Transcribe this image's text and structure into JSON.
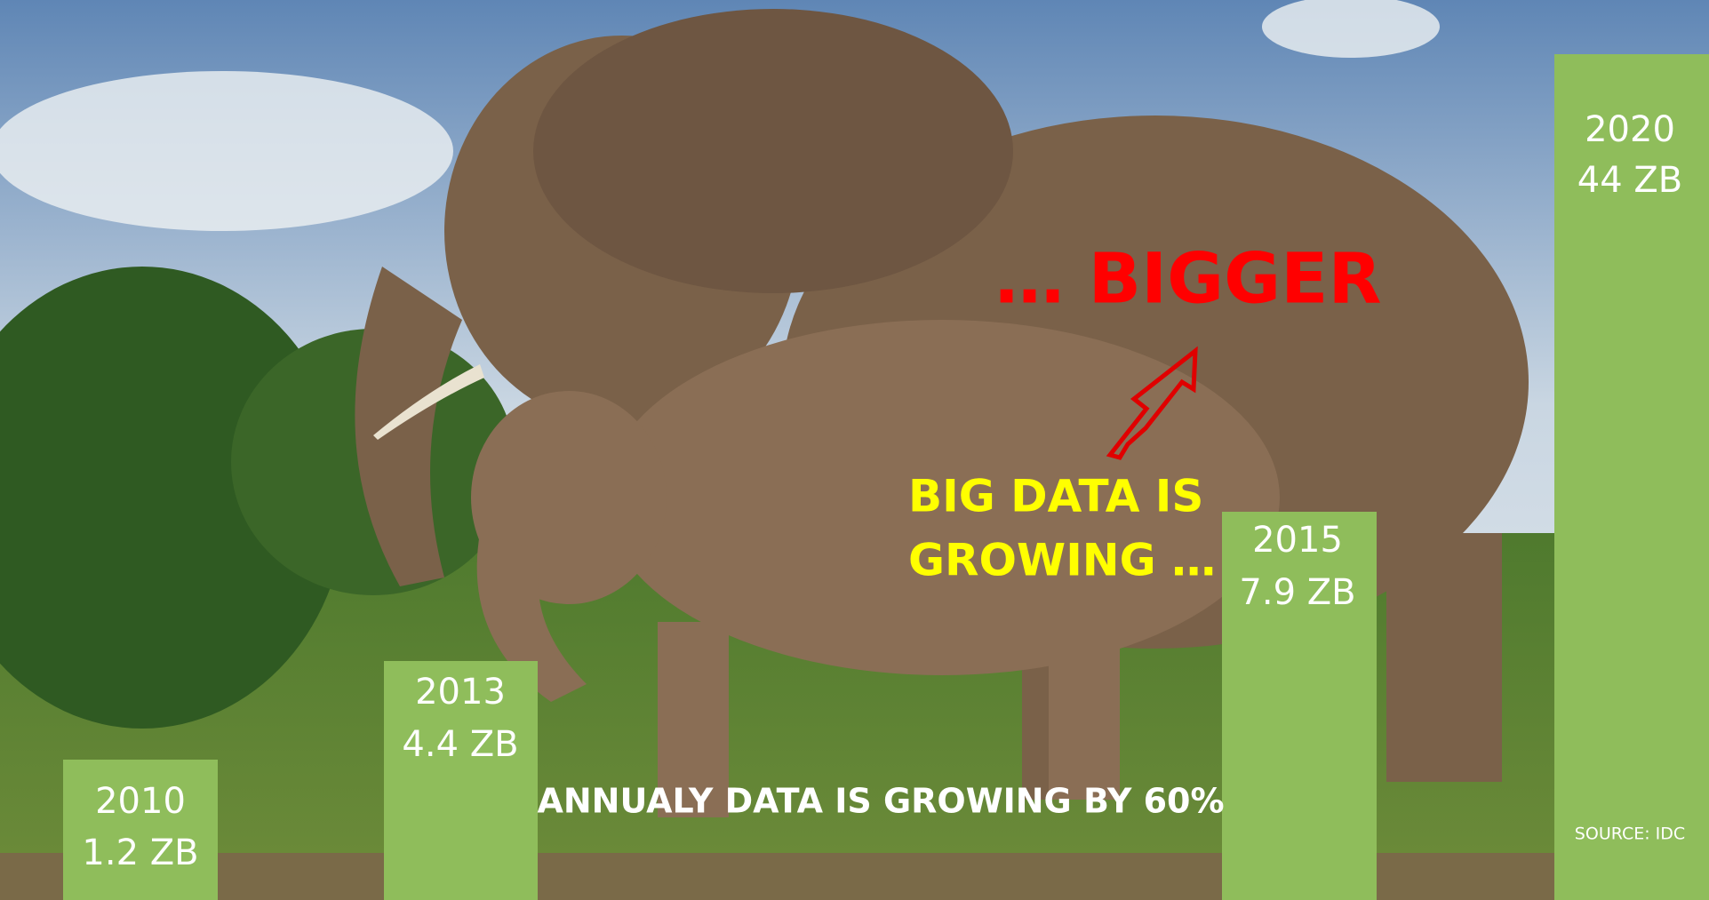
{
  "slide": {
    "bars": [
      {
        "year": "2010",
        "amount": "1.2 ZB"
      },
      {
        "year": "2013",
        "amount": "4.4 ZB"
      },
      {
        "year": "2015",
        "amount": "7.9 ZB"
      },
      {
        "year": "2020",
        "amount": "44 ZB"
      }
    ],
    "headline": "… BIGGER",
    "caption": [
      "BIG DATA IS",
      "GROWING …"
    ],
    "footer": "ANNUALY DATA IS GROWING BY 60%",
    "source": "SOURCE: IDC"
  }
}
